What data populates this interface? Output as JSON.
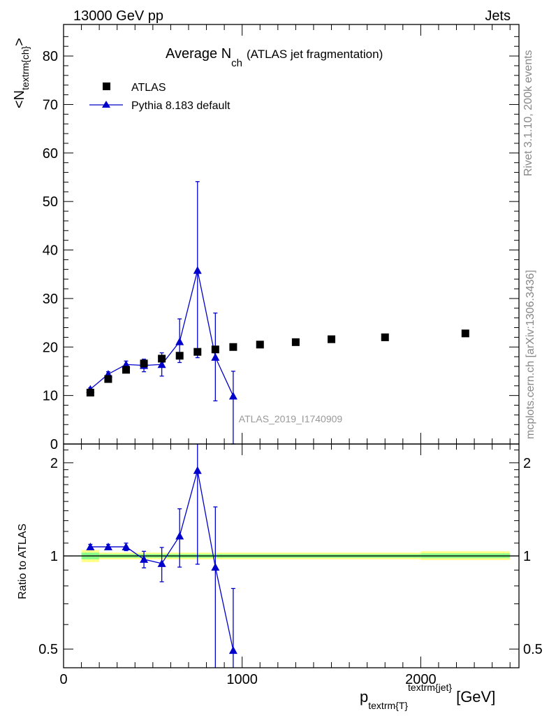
{
  "header": {
    "left": "13000 GeV pp",
    "right": "Jets"
  },
  "side_labels": {
    "version": "Rivet 3.1.10,  200k events",
    "source": "mcplots.cern.ch [arXiv:1306.3436]"
  },
  "chart_data": [
    {
      "type": "scatter",
      "panel": "main",
      "title_main": "Average N",
      "title_sub": "ch",
      "title_rest": "(ATLAS jet fragmentation)",
      "ylabel_pre": "<N",
      "ylabel_sub": "textrm{ch}",
      "ylabel_post": ">",
      "xlim": [
        0,
        2550
      ],
      "ylim": [
        0,
        86.5
      ],
      "yticks": [
        "0",
        "10",
        "20",
        "30",
        "40",
        "50",
        "60",
        "70",
        "80"
      ],
      "analysis_id": "ATLAS_2019_I1740909",
      "legend": {
        "placement": "top-left",
        "data_label": "ATLAS",
        "mc_label": "Pythia 8.183 default"
      },
      "series": [
        {
          "name": "ATLAS",
          "marker": "square",
          "color": "#000000",
          "x": [
            150,
            250,
            350,
            450,
            550,
            650,
            750,
            850,
            950,
            1100,
            1300,
            1500,
            1800,
            2250
          ],
          "y": [
            10.6,
            13.4,
            15.3,
            16.6,
            17.6,
            18.2,
            19.0,
            19.5,
            20.0,
            20.5,
            21.0,
            21.6,
            22.0,
            22.8
          ]
        },
        {
          "name": "Pythia 8.183 default",
          "marker": "triangle",
          "color": "#0000cc",
          "x": [
            150,
            250,
            350,
            450,
            550,
            650,
            750,
            850,
            950
          ],
          "y": [
            11.3,
            14.4,
            16.4,
            16.2,
            16.4,
            21.1,
            35.8,
            17.9,
            9.9
          ],
          "err_lo": [
            0.3,
            0.5,
            0.7,
            1.3,
            2.4,
            4.3,
            18.0,
            9.0,
            9.9
          ],
          "err_hi": [
            0.3,
            0.5,
            0.7,
            1.3,
            2.4,
            4.7,
            18.3,
            9.1,
            5.1
          ]
        }
      ]
    },
    {
      "type": "scatter",
      "panel": "ratio",
      "ylabel": "Ratio to ATLAS",
      "xlabel_pre": "p",
      "xlabel_sub": "textrm{T}",
      "xlabel_sup": "textrm{jet}",
      "xlabel_post": "[GeV]",
      "xlim": [
        0,
        2550
      ],
      "ylim_log": [
        0.435,
        2.3
      ],
      "xticks": [
        "0",
        "1000",
        "2000"
      ],
      "yticks": [
        "0.5",
        "1",
        "2"
      ],
      "reference_band": [
        {
          "x0": 100,
          "x1": 200,
          "lo": 0.955,
          "hi": 1.045
        },
        {
          "x0": 200,
          "x1": 2000,
          "lo": 0.975,
          "hi": 1.025
        },
        {
          "x0": 2000,
          "x1": 2500,
          "lo": 0.97,
          "hi": 1.035
        }
      ],
      "series": [
        {
          "name": "Pythia 8.183 default / ATLAS",
          "x": [
            150,
            250,
            350,
            450,
            550,
            650,
            750,
            850,
            950
          ],
          "y": [
            1.07,
            1.07,
            1.07,
            0.975,
            0.945,
            1.16,
            1.89,
            0.92,
            0.495
          ],
          "err_lo": [
            0.02,
            0.02,
            0.03,
            0.06,
            0.12,
            0.24,
            0.95,
            0.5,
            0.06
          ],
          "err_hi": [
            0.02,
            0.02,
            0.03,
            0.06,
            0.12,
            0.26,
            0.41,
            0.52,
            0.29
          ]
        }
      ]
    }
  ]
}
